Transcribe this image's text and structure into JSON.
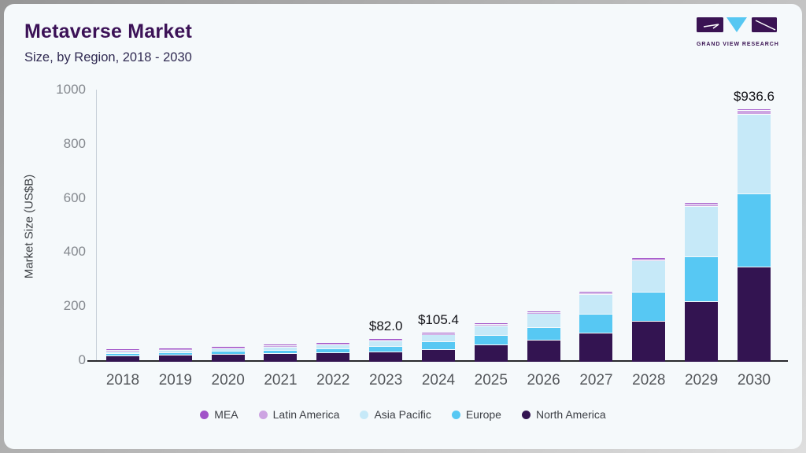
{
  "logo": {
    "caption": "GRAND VIEW RESEARCH",
    "mark_colors": {
      "square": "#3a1353",
      "triangle": "#56c7f2"
    }
  },
  "colors": {
    "card_background": "#f5f9fb",
    "title": "#3c1257",
    "subtitle": "#302a52",
    "axis_line": "#28282c",
    "tick_text": "#84888e"
  },
  "chart_data": {
    "type": "bar",
    "stacked": true,
    "title": "Metaverse Market",
    "subtitle": "Size, by Region, 2018 - 2030",
    "xlabel": "",
    "ylabel": "Market Size (US$B)",
    "ylim": [
      0,
      1000
    ],
    "yticks": [
      0,
      200,
      400,
      600,
      800,
      1000
    ],
    "grid": false,
    "legend_position": "bottom",
    "categories": [
      "2018",
      "2019",
      "2020",
      "2021",
      "2022",
      "2023",
      "2024",
      "2025",
      "2026",
      "2027",
      "2028",
      "2029",
      "2030"
    ],
    "series": [
      {
        "name": "North America",
        "color": "#331451",
        "values": [
          24,
          26,
          29,
          32,
          35,
          38.5,
          47.5,
          65,
          80,
          108,
          152,
          224,
          352
        ]
      },
      {
        "name": "Europe",
        "color": "#57c8f3",
        "values": [
          8,
          9,
          10.5,
          12.5,
          14.5,
          20,
          27,
          35,
          49,
          69,
          108,
          165,
          270
        ]
      },
      {
        "name": "Asia Pacific",
        "color": "#c6e9f8",
        "values": [
          7,
          8.5,
          10,
          12,
          14.5,
          20,
          26.5,
          35,
          51,
          74,
          115,
          186,
          294
        ]
      },
      {
        "name": "Latin America",
        "color": "#cda4e2",
        "values": [
          1.6,
          1.8,
          2.1,
          2.4,
          2.8,
          2.5,
          3,
          3.8,
          4.5,
          6,
          8,
          10,
          14
        ]
      },
      {
        "name": "MEA",
        "color": "#a152c8",
        "values": [
          0.8,
          0.9,
          1,
          1.2,
          1.4,
          1,
          1.4,
          1.7,
          2,
          2.8,
          3.5,
          4.5,
          6.6
        ]
      }
    ],
    "totals": [
      41.4,
      46.2,
      52.6,
      60.1,
      68.2,
      82.0,
      105.4,
      140.5,
      186.5,
      259.8,
      386.5,
      589.5,
      936.6
    ],
    "annotations": [
      {
        "category": "2023",
        "text": "$82.0"
      },
      {
        "category": "2024",
        "text": "$105.4"
      },
      {
        "category": "2030",
        "text": "$936.6"
      }
    ],
    "legend_order": [
      "MEA",
      "Latin America",
      "Asia Pacific",
      "Europe",
      "North America"
    ]
  }
}
